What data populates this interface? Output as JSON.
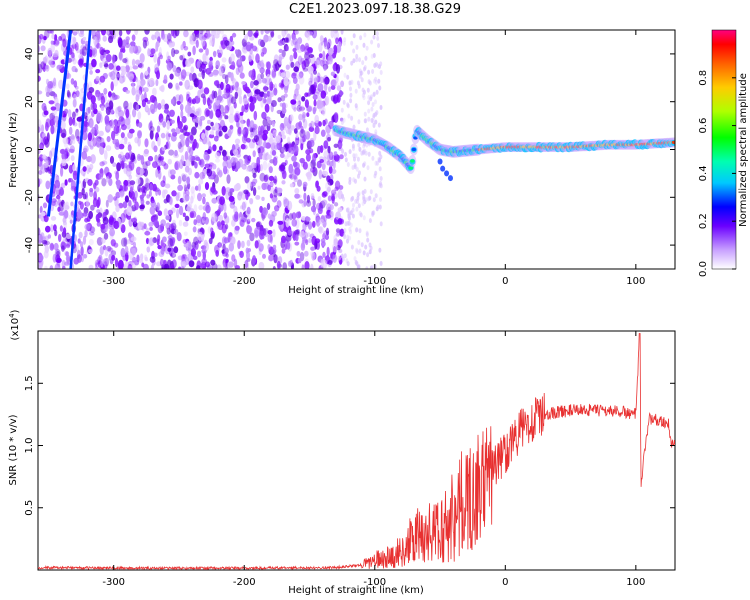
{
  "title": "C2E1.2023.097.18.38.G29",
  "chart_data": [
    {
      "type": "heatmap",
      "title": "",
      "xlabel": "Height of straight line (km)",
      "ylabel": "Frequency (Hz)",
      "xlim": [
        -358,
        130
      ],
      "ylim": [
        -50,
        50
      ],
      "xticks": [
        -300,
        -200,
        -100,
        0,
        100
      ],
      "yticks": [
        -40,
        -20,
        0,
        20,
        40
      ],
      "colorbar": {
        "label": "Normalized spectral amplitude",
        "range": [
          0.0,
          1.0
        ],
        "ticks": [
          0.0,
          0.2,
          0.4,
          0.6,
          0.8
        ]
      },
      "ridge": {
        "x": [
          -130,
          -115,
          -100,
          -90,
          -80,
          -72,
          -68,
          -60,
          -50,
          -40,
          -20,
          0,
          20,
          50,
          80,
          100,
          130
        ],
        "y": [
          8,
          6,
          4,
          1,
          -3,
          -8,
          8,
          4,
          0,
          -1,
          0,
          1,
          1,
          1,
          2,
          2,
          3
        ]
      }
    },
    {
      "type": "line",
      "title": "",
      "xlabel": "Height of straight line (km)",
      "ylabel": "SNR (10 * v/v)",
      "multiplier": "(x10",
      "multiplier_exp": "4",
      "xlim": [
        -358,
        130
      ],
      "ylim": [
        0,
        1.92
      ],
      "xticks": [
        -300,
        -200,
        -100,
        0,
        100
      ],
      "yticks": [
        0.5,
        1.0,
        1.5
      ],
      "series": [
        {
          "x": [
            -358,
            -300,
            -200,
            -130,
            -110,
            -100,
            -90,
            -80,
            -70,
            -60,
            -50,
            -40,
            -30,
            -20,
            -10,
            0,
            10,
            20,
            30,
            40,
            50,
            60,
            70,
            80,
            90,
            100,
            103,
            104,
            110,
            120,
            125,
            126,
            130
          ],
          "y": [
            0.02,
            0.015,
            0.015,
            0.02,
            0.04,
            0.08,
            0.1,
            0.15,
            0.25,
            0.3,
            0.3,
            0.45,
            0.55,
            0.65,
            0.8,
            0.95,
            1.1,
            1.2,
            1.25,
            1.27,
            1.28,
            1.29,
            1.28,
            1.28,
            1.27,
            1.25,
            1.9,
            0.7,
            1.22,
            1.2,
            1.18,
            1.03,
            1.03
          ],
          "color": "#e83030"
        }
      ]
    }
  ]
}
